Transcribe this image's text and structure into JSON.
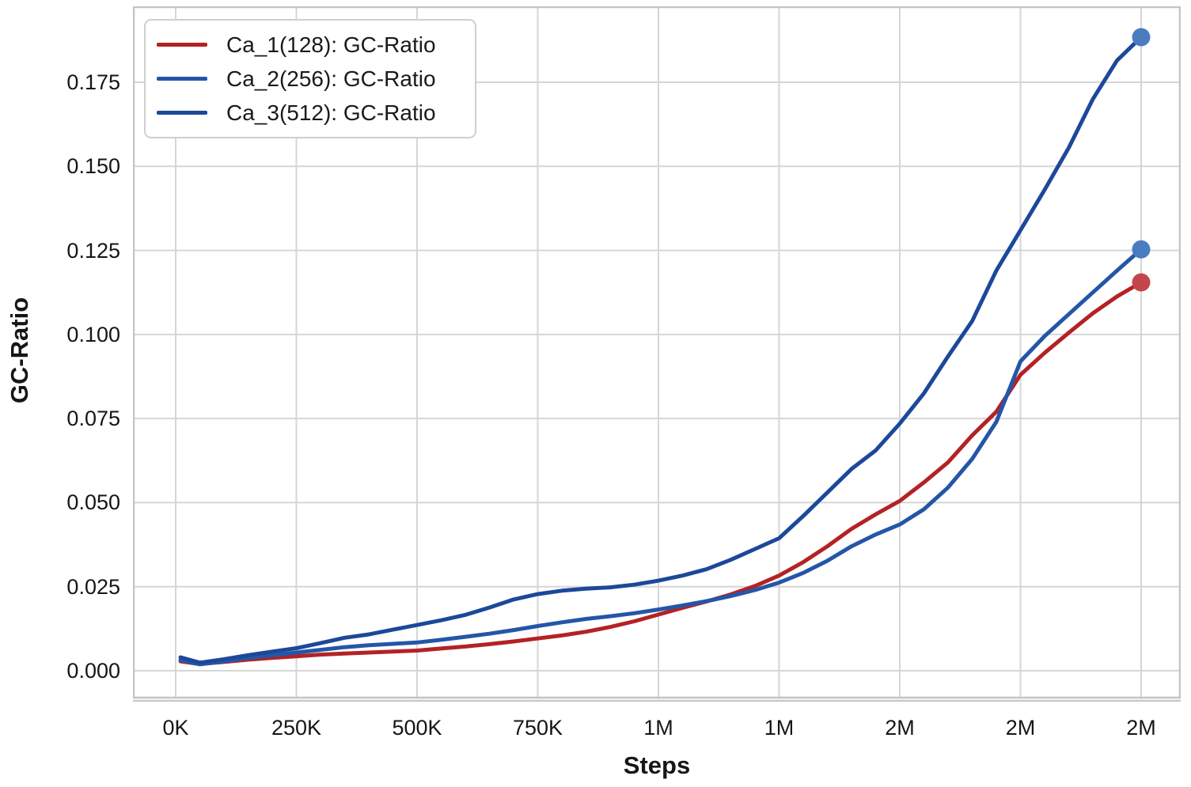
{
  "chart_data": {
    "type": "line",
    "title": "",
    "xlabel": "Steps",
    "ylabel": "GC-Ratio",
    "x_unit_note": "x values are thousands of steps",
    "xlim_k": [
      0,
      2000
    ],
    "ylim": [
      -0.0082,
      0.1976
    ],
    "grid": true,
    "legend_position": "top-left",
    "x_ticks": {
      "values_k": [
        0,
        250,
        500,
        750,
        1000,
        1250,
        1500,
        1750,
        2000
      ],
      "labels": [
        "0K",
        "250K",
        "500K",
        "750K",
        "1M",
        "1M",
        "2M",
        "2M",
        "2M"
      ]
    },
    "y_ticks": {
      "values": [
        0.0,
        0.025,
        0.05,
        0.075,
        0.1,
        0.125,
        0.15,
        0.175
      ],
      "labels": [
        "0.000",
        "0.025",
        "0.050",
        "0.075",
        "0.100",
        "0.125",
        "0.150",
        "0.175"
      ]
    },
    "x_k": [
      10,
      50,
      100,
      150,
      200,
      250,
      300,
      350,
      400,
      450,
      500,
      550,
      600,
      650,
      700,
      750,
      800,
      850,
      900,
      950,
      1000,
      1050,
      1100,
      1150,
      1200,
      1250,
      1300,
      1350,
      1400,
      1450,
      1500,
      1550,
      1600,
      1650,
      1700,
      1750,
      1800,
      1850,
      1900,
      1950,
      2000
    ],
    "series": [
      {
        "name": "Ca_1(128)",
        "legend_label": "Ca_1(128): GC-Ratio",
        "color": "#b32226",
        "marker_color": "#c4454b",
        "end_marker": true,
        "final_value": 0.1155,
        "values": [
          0.0028,
          0.002,
          0.0026,
          0.0033,
          0.0038,
          0.0043,
          0.0048,
          0.0051,
          0.0054,
          0.0057,
          0.006,
          0.0066,
          0.0072,
          0.0079,
          0.0087,
          0.0096,
          0.0105,
          0.0116,
          0.013,
          0.0147,
          0.0167,
          0.0187,
          0.0206,
          0.0227,
          0.0252,
          0.0283,
          0.0323,
          0.037,
          0.0422,
          0.0465,
          0.0505,
          0.056,
          0.062,
          0.07,
          0.077,
          0.088,
          0.0945,
          0.1005,
          0.1063,
          0.1113,
          0.1155
        ]
      },
      {
        "name": "Ca_2(256)",
        "legend_label": "Ca_2(256): GC-Ratio",
        "color": "#2456a8",
        "marker_color": "#4a7cc2",
        "end_marker": true,
        "final_value": 0.1253,
        "values": [
          0.0032,
          0.0019,
          0.0028,
          0.0038,
          0.0046,
          0.0054,
          0.0062,
          0.007,
          0.0076,
          0.008,
          0.0084,
          0.0092,
          0.0101,
          0.011,
          0.0121,
          0.0133,
          0.0144,
          0.0154,
          0.0162,
          0.0171,
          0.0182,
          0.0194,
          0.0207,
          0.0222,
          0.024,
          0.0262,
          0.0291,
          0.0327,
          0.037,
          0.0405,
          0.0435,
          0.048,
          0.0545,
          0.063,
          0.074,
          0.092,
          0.0995,
          0.106,
          0.1125,
          0.119,
          0.1253
        ]
      },
      {
        "name": "Ca_3(512)",
        "legend_label": "Ca_3(512): GC-Ratio",
        "color": "#1c489b",
        "marker_color": "#4a7cc2",
        "end_marker": true,
        "final_value": 0.1884,
        "values": [
          0.004,
          0.0024,
          0.0034,
          0.0046,
          0.0057,
          0.0067,
          0.0082,
          0.0098,
          0.0108,
          0.0122,
          0.0136,
          0.015,
          0.0166,
          0.0188,
          0.0212,
          0.0228,
          0.0238,
          0.0244,
          0.0248,
          0.0256,
          0.0268,
          0.0283,
          0.0302,
          0.033,
          0.0362,
          0.0394,
          0.046,
          0.053,
          0.06,
          0.0655,
          0.0735,
          0.0825,
          0.0935,
          0.104,
          0.119,
          0.131,
          0.143,
          0.1555,
          0.17,
          0.1815,
          0.1884
        ]
      }
    ],
    "colors": {
      "grid": "#d6d6d6",
      "plot_border": "#c4c4c4",
      "axis_shadow": "#c9c9c9",
      "text": "#161616",
      "background": "#ffffff"
    }
  }
}
